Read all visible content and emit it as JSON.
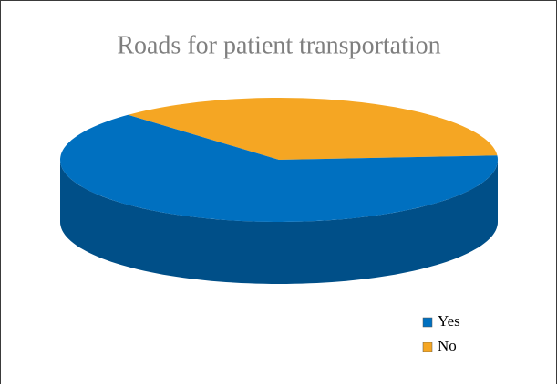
{
  "chart_data": {
    "type": "pie3d",
    "title": "Roads for patient transportation",
    "categories": [
      "Yes",
      "No"
    ],
    "values": [
      64,
      36
    ],
    "colors": [
      "#0070c0",
      "#f5a623"
    ],
    "side_colors": [
      "#004f88",
      "#c7831a"
    ],
    "legend": "bottom-right"
  }
}
